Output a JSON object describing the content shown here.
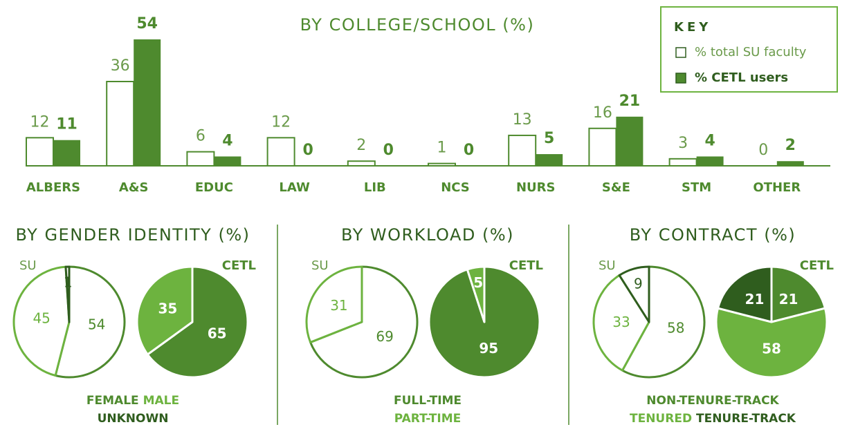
{
  "chart_data": [
    {
      "type": "bar",
      "title": "BY COLLEGE/SCHOOL (%)",
      "legend_title": "KEY",
      "categories": [
        "ALBERS",
        "A&S",
        "EDUC",
        "LAW",
        "LIB",
        "NCS",
        "NURS",
        "S&E",
        "STM",
        "OTHER"
      ],
      "series": [
        {
          "name": "% total SU faculty",
          "color": "#ffffff",
          "values": [
            12,
            36,
            6,
            12,
            2,
            1,
            13,
            16,
            3,
            0
          ]
        },
        {
          "name": "% CETL users",
          "color": "#4e8a2e",
          "values": [
            11,
            54,
            4,
            0,
            0,
            0,
            5,
            21,
            4,
            2
          ]
        }
      ]
    },
    {
      "type": "pie",
      "title": "BY GENDER IDENTITY (%)",
      "categories": [
        "FEMALE",
        "MALE",
        "UNKNOWN"
      ],
      "colors": [
        "#4e8a2e",
        "#6db33f",
        "#2f5d1e"
      ],
      "series": [
        {
          "name": "SU",
          "values": [
            54,
            45,
            1
          ]
        },
        {
          "name": "CETL",
          "values": [
            65,
            35,
            null
          ]
        }
      ]
    },
    {
      "type": "pie",
      "title": "BY WORKLOAD (%)",
      "categories": [
        "FULL-TIME",
        "PART-TIME"
      ],
      "colors": [
        "#4e8a2e",
        "#6db33f"
      ],
      "series": [
        {
          "name": "SU",
          "values": [
            69,
            31
          ]
        },
        {
          "name": "CETL",
          "values": [
            95,
            5
          ]
        }
      ]
    },
    {
      "type": "pie",
      "title": "BY CONTRACT (%)",
      "categories": [
        "NON-TENURE-TRACK",
        "TENURED",
        "TENURE-TRACK"
      ],
      "colors": [
        "#4e8a2e",
        "#6db33f",
        "#2f5d1e"
      ],
      "series": [
        {
          "name": "SU",
          "values": [
            58,
            33,
            9
          ]
        },
        {
          "name": "CETL",
          "values": [
            21,
            58,
            21
          ]
        }
      ]
    }
  ]
}
